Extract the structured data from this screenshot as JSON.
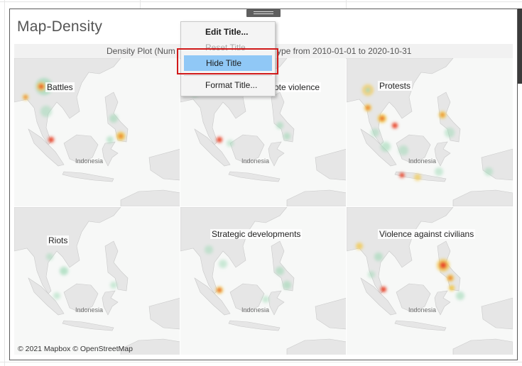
{
  "viz": {
    "title": "Map-Density",
    "subtitle_left": "Density Plot (Num",
    "subtitle_right": "ype from 2010-01-01 to 2020-10-31",
    "copyright": "© 2021 Mapbox © OpenStreetMap",
    "panels": [
      {
        "label": "Battles",
        "map_label": "Indonesia"
      },
      {
        "label": "ote violence",
        "map_label": "Indonesia"
      },
      {
        "label": "Protests",
        "map_label": "Indonesia"
      },
      {
        "label": "Riots",
        "map_label": "Indonesia"
      },
      {
        "label": "Strategic developments",
        "map_label": "Indonesia"
      },
      {
        "label": "Violence against civilians",
        "map_label": "Indonesia"
      }
    ]
  },
  "context_menu": {
    "items": [
      {
        "label": "Edit Title...",
        "state": "bold"
      },
      {
        "label": "Reset Title",
        "state": "disabled"
      },
      {
        "label": "Hide Title",
        "state": "highlighted"
      },
      {
        "label": "Format Title...",
        "state": "normal"
      }
    ]
  },
  "colors": {
    "highlight": "#90c8f6",
    "annotation_box": "#d11a1a",
    "heat_low": "#9ed9b6",
    "heat_mid": "#f2c94c",
    "heat_high": "#e8452c"
  }
}
